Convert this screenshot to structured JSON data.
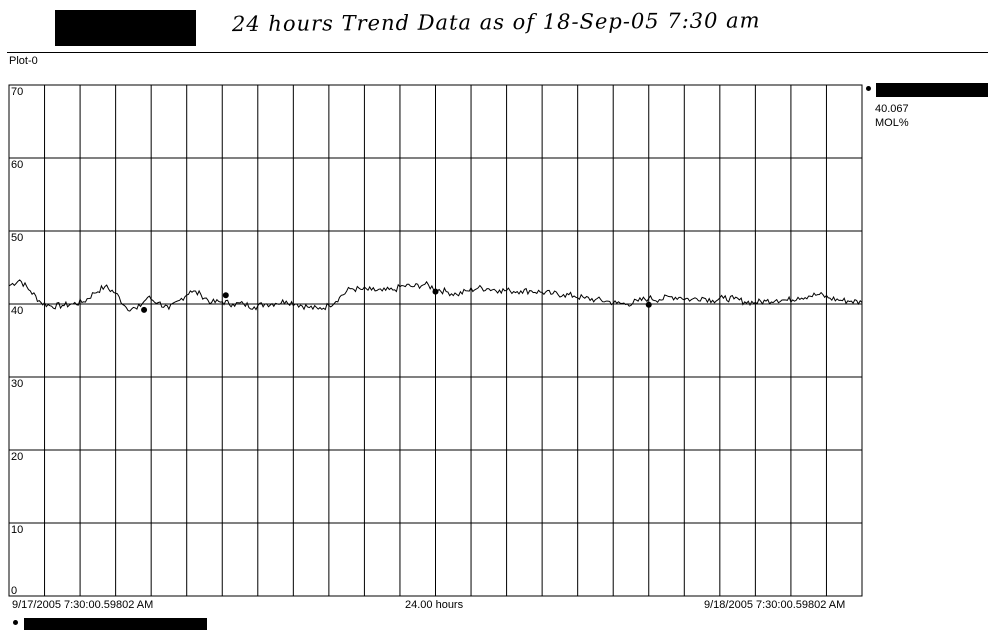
{
  "header": {
    "handwritten_title": "24 hours Trend Data as of 18-Sep-05 7:30 am"
  },
  "plot": {
    "label": "Plot-0"
  },
  "legend": {
    "value": "40.067",
    "unit": "MOL%"
  },
  "x_axis": {
    "start_label": "9/17/2005 7:30:00.59802 AM",
    "span_label": "24.00 hours",
    "end_label": "9/18/2005 7:30:00.59802 AM"
  },
  "colors": {
    "trace": "#000000",
    "grid": "#000000",
    "background": "#ffffff"
  },
  "chart_data": {
    "type": "line",
    "title": "",
    "xlabel": "24.00 hours",
    "ylabel": "",
    "x_unit": "hours since 9/17/2005 7:30 AM",
    "xlim": [
      0,
      24
    ],
    "ylim": [
      0,
      70
    ],
    "yticks": [
      0,
      10,
      20,
      30,
      40,
      50,
      60,
      70
    ],
    "grid": true,
    "legend_position": "right",
    "reference_line": 40,
    "series": [
      {
        "name": "",
        "x": [
          0,
          0.3,
          0.6,
          0.9,
          1.2,
          1.5,
          1.8,
          2.1,
          2.4,
          2.7,
          3.0,
          3.3,
          3.6,
          3.9,
          4.2,
          4.5,
          4.8,
          5.1,
          5.4,
          5.7,
          6.0,
          6.3,
          6.6,
          6.9,
          7.2,
          7.5,
          7.8,
          8.1,
          8.4,
          8.7,
          9.0,
          9.3,
          9.6,
          9.9,
          10.2,
          10.5,
          10.8,
          11.1,
          11.4,
          11.7,
          12.0,
          12.3,
          12.6,
          12.9,
          13.2,
          13.5,
          13.8,
          14.1,
          14.4,
          14.7,
          15.0,
          15.3,
          15.6,
          15.9,
          16.2,
          16.5,
          16.8,
          17.1,
          17.4,
          17.7,
          18.0,
          18.3,
          18.6,
          18.9,
          19.2,
          19.5,
          19.8,
          20.1,
          20.4,
          20.7,
          21.0,
          21.3,
          21.6,
          21.9,
          22.2,
          22.5,
          22.8,
          23.1,
          23.4,
          23.7,
          24.0
        ],
        "values": [
          42.5,
          43.3,
          41.8,
          40.2,
          39.7,
          39.8,
          40.0,
          40.3,
          41.5,
          42.4,
          41.5,
          39.5,
          39.3,
          40.9,
          40.2,
          39.3,
          40.5,
          41.8,
          41.3,
          40.2,
          40.3,
          40.0,
          40.0,
          39.6,
          40.0,
          40.1,
          40.4,
          40.0,
          39.6,
          39.3,
          39.8,
          40.9,
          42.1,
          42.0,
          41.9,
          41.8,
          41.9,
          42.5,
          42.4,
          42.7,
          42.1,
          41.7,
          41.3,
          41.8,
          42.2,
          42.1,
          41.9,
          41.8,
          41.8,
          41.8,
          41.6,
          41.4,
          41.3,
          41.1,
          40.8,
          40.6,
          40.4,
          40.1,
          40.0,
          40.4,
          40.8,
          40.6,
          41.0,
          40.9,
          40.6,
          40.9,
          40.5,
          40.8,
          40.7,
          40.3,
          40.2,
          40.4,
          40.6,
          40.5,
          40.9,
          41.1,
          41.3,
          40.8,
          40.5,
          40.4,
          40.2
        ]
      }
    ],
    "markers": [
      {
        "x": 3.8,
        "y": 39.2
      },
      {
        "x": 6.1,
        "y": 41.2
      },
      {
        "x": 12.0,
        "y": 41.7
      },
      {
        "x": 18.0,
        "y": 39.9
      }
    ]
  }
}
